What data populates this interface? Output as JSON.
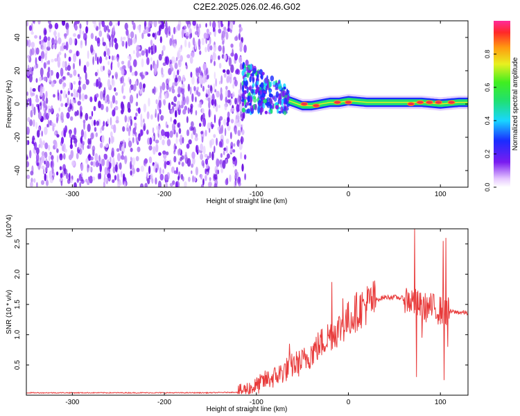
{
  "title": "C2E2.2025.026.02.46.G02",
  "colors": {
    "snr_line": "#e83a3a",
    "spec_low": "#7a1cf0",
    "spec_mid": "#19e0d0",
    "spec_high": "#f0304a"
  },
  "chart_data": [
    {
      "type": "heatmap",
      "title": "C2E2.2025.026.02.46.G02",
      "xlabel": "Height of straight line (km)",
      "ylabel": "Frequency (Hz)",
      "xlim": [
        -350,
        130
      ],
      "ylim": [
        -50,
        50
      ],
      "xticks": [
        -300,
        -200,
        -100,
        0,
        100
      ],
      "yticks": [
        -40,
        -20,
        0,
        20,
        40
      ],
      "colorbar": {
        "label": "Normalized spectral amplitude",
        "range": [
          0.0,
          1.0
        ],
        "ticks": [
          "0.0",
          "0.2",
          "0.4",
          "0.6",
          "0.8"
        ],
        "colormap": "rainbow"
      },
      "regions": [
        {
          "name": "noise",
          "x_range": [
            -350,
            -112
          ],
          "freq_range": [
            -50,
            50
          ],
          "amplitude": 0.15
        },
        {
          "name": "signal-onset",
          "x_range": [
            -112,
            -70
          ],
          "freq_center": 8,
          "amplitude": 0.5
        },
        {
          "name": "tracked-signal",
          "x_range": [
            -70,
            130
          ],
          "freq_center": 1,
          "freq_width": 4,
          "amplitude": 0.6
        }
      ],
      "ridge": [
        [
          -110,
          10
        ],
        [
          -100,
          8
        ],
        [
          -90,
          6
        ],
        [
          -80,
          5
        ],
        [
          -70,
          3
        ],
        [
          -60,
          1
        ],
        [
          -50,
          -1
        ],
        [
          -40,
          -1
        ],
        [
          -30,
          0
        ],
        [
          -20,
          1
        ],
        [
          -10,
          1
        ],
        [
          0,
          2
        ],
        [
          20,
          1
        ],
        [
          40,
          1
        ],
        [
          60,
          1
        ],
        [
          80,
          1
        ],
        [
          100,
          0
        ],
        [
          120,
          1
        ],
        [
          130,
          1
        ]
      ],
      "hotspots": [
        [
          -48,
          0
        ],
        [
          -35,
          -1
        ],
        [
          -12,
          1
        ],
        [
          0,
          1
        ],
        [
          68,
          0
        ],
        [
          78,
          1
        ],
        [
          88,
          1
        ],
        [
          98,
          1
        ],
        [
          112,
          1
        ]
      ]
    },
    {
      "type": "line",
      "xlabel": "Height of straight line (km)",
      "ylabel": "SNR (10 * v/v)",
      "y_multiplier": "(x10^4)",
      "xlim": [
        -350,
        130
      ],
      "ylim": [
        0,
        2.75
      ],
      "xticks": [
        -300,
        -200,
        -100,
        0,
        100
      ],
      "yticks": [
        0.5,
        1.0,
        1.5,
        2.0,
        2.5
      ],
      "series": [
        {
          "x": [
            -350,
            -300,
            -250,
            -200,
            -150,
            -120,
            -110,
            -100,
            -90,
            -80,
            -70,
            -60,
            -50,
            -40,
            -30,
            -20,
            -10,
            0,
            10,
            20,
            30,
            40,
            50,
            60,
            70,
            80,
            90,
            100,
            110,
            120,
            130
          ],
          "y": [
            0.04,
            0.04,
            0.04,
            0.04,
            0.04,
            0.05,
            0.1,
            0.15,
            0.25,
            0.3,
            0.4,
            0.5,
            0.55,
            0.7,
            0.85,
            1.0,
            1.1,
            1.25,
            1.4,
            1.5,
            1.58,
            1.62,
            1.62,
            1.6,
            1.55,
            1.45,
            1.45,
            1.4,
            1.38,
            1.37,
            1.36
          ],
          "spikes": [
            [
              -64,
              0.85
            ],
            [
              -18,
              1.87
            ],
            [
              -6,
              1.6
            ],
            [
              72,
              2.75
            ],
            [
              74,
              0.3
            ],
            [
              80,
              0.95
            ],
            [
              103,
              2.55
            ],
            [
              104,
              0.25
            ],
            [
              106,
              2.6
            ],
            [
              108,
              0.8
            ]
          ]
        }
      ]
    }
  ]
}
